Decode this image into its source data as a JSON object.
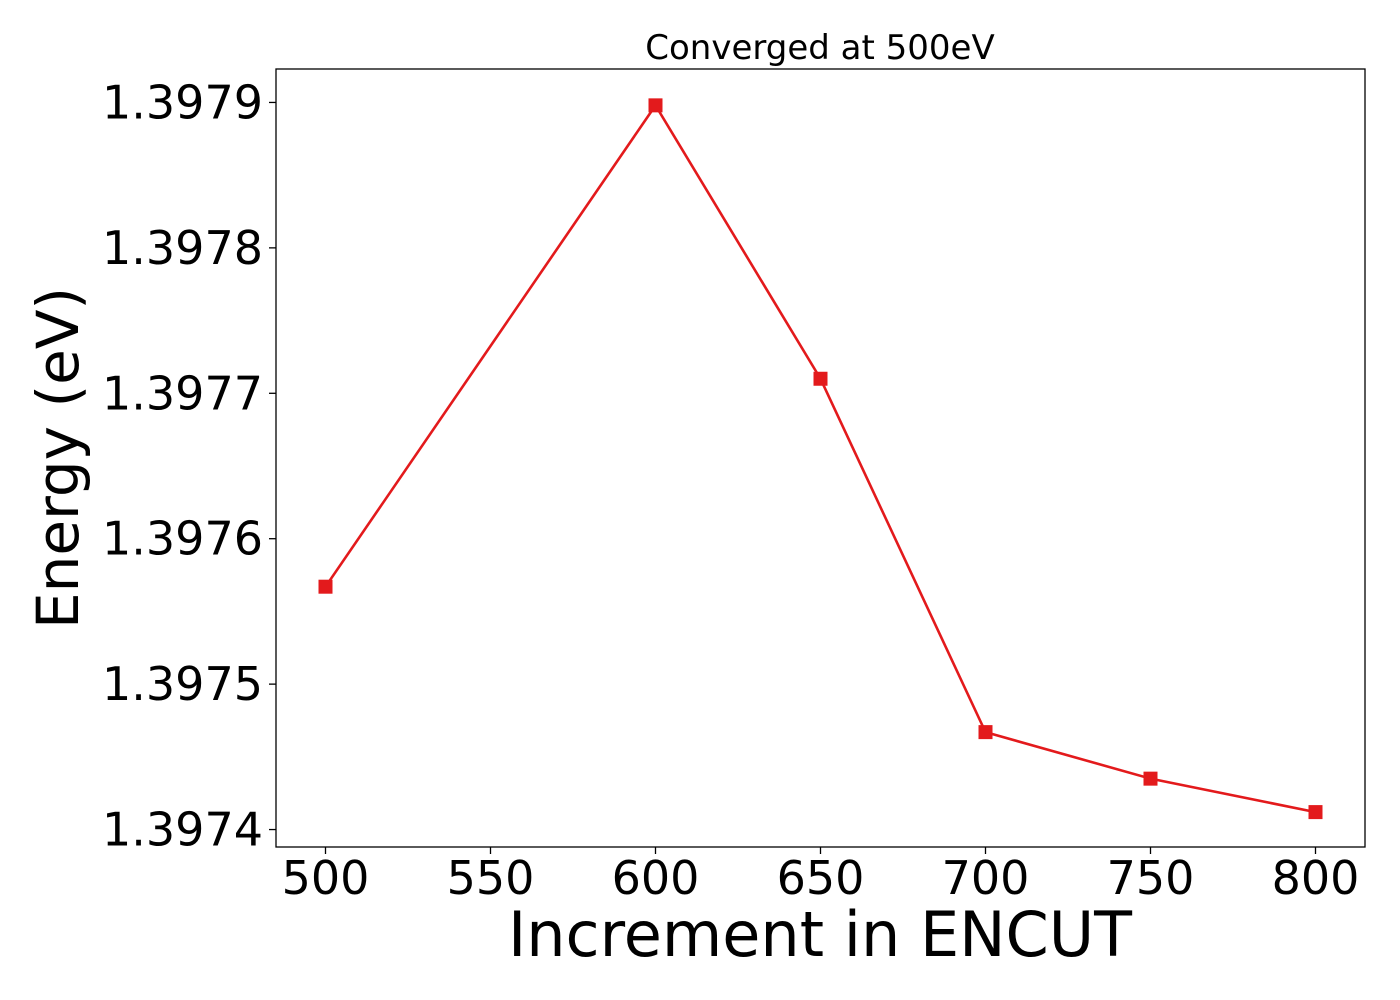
{
  "chart_data": {
    "type": "line",
    "title": "Converged at 500eV",
    "xlabel": "Increment in ENCUT",
    "ylabel": "Energy (eV)",
    "x": [
      500,
      600,
      650,
      700,
      750,
      800
    ],
    "series": [
      {
        "values": [
          1.397567,
          1.397898,
          1.39771,
          1.397467,
          1.397435,
          1.397412
        ],
        "color": "#e31a1c",
        "marker": "square"
      }
    ],
    "xlim": [
      485,
      815
    ],
    "ylim": [
      1.397388,
      1.397923
    ],
    "xticks": [
      500,
      550,
      600,
      650,
      700,
      750,
      800
    ],
    "xtick_labels": [
      "500",
      "550",
      "600",
      "650",
      "700",
      "750",
      "800"
    ],
    "yticks": [
      1.3974,
      1.3975,
      1.3976,
      1.3977,
      1.3978,
      1.3979
    ],
    "ytick_labels": [
      "1.3974",
      "1.3975",
      "1.3976",
      "1.3977",
      "1.3978",
      "1.3979"
    ],
    "grid": false,
    "legend": false
  }
}
